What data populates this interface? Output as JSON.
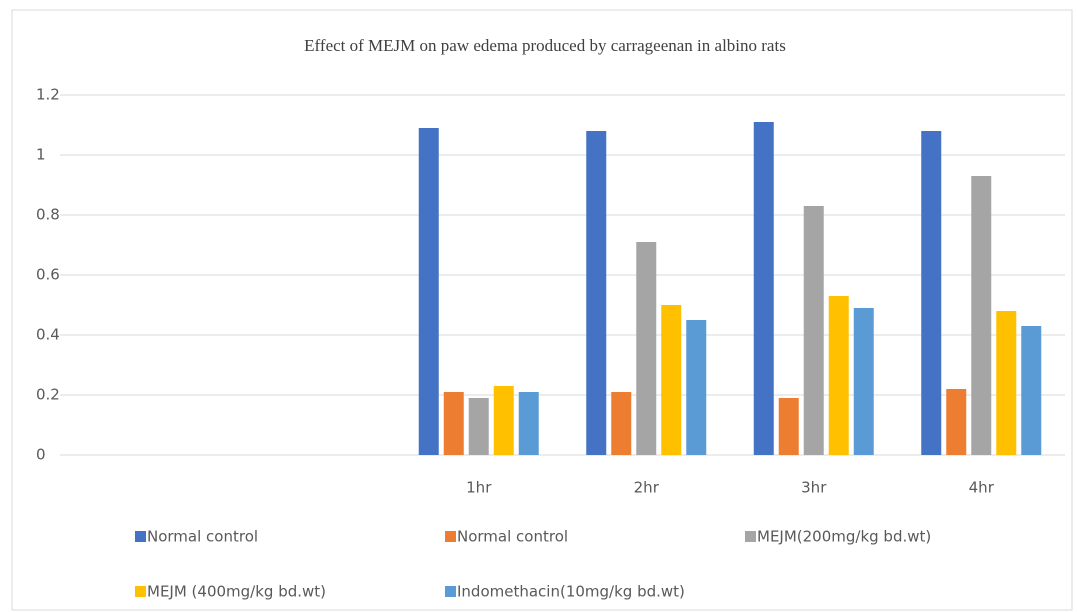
{
  "chart_data": {
    "type": "bar",
    "title": "Effect of MEJM on paw edema produced by carrageenan in albino rats",
    "categories": [
      null,
      null,
      "1hr",
      "2hr",
      "3hr",
      "4hr"
    ],
    "series": [
      {
        "name": "Normal control",
        "color": "#4472c4",
        "values": [
          null,
          null,
          1.09,
          1.08,
          1.11,
          1.08
        ]
      },
      {
        "name": "Normal control",
        "color": "#ed7d31",
        "values": [
          null,
          null,
          0.21,
          0.21,
          0.19,
          0.22
        ]
      },
      {
        "name": "MEJM(200mg/kg bd.wt)",
        "color": "#a5a5a5",
        "values": [
          null,
          null,
          0.19,
          0.71,
          0.83,
          0.93
        ]
      },
      {
        "name": "MEJM (400mg/kg bd.wt)",
        "color": "#ffc000",
        "values": [
          null,
          null,
          0.23,
          0.5,
          0.53,
          0.48
        ]
      },
      {
        "name": "Indomethacin(10mg/kg bd.wt)",
        "color": "#5b9bd5",
        "values": [
          null,
          null,
          0.21,
          0.45,
          0.49,
          0.43
        ]
      }
    ],
    "ylim": [
      0,
      1.2
    ],
    "yticks": [
      0,
      0.2,
      0.4,
      0.6,
      0.8,
      1,
      1.2
    ],
    "grid": true,
    "legend": "bottom"
  }
}
